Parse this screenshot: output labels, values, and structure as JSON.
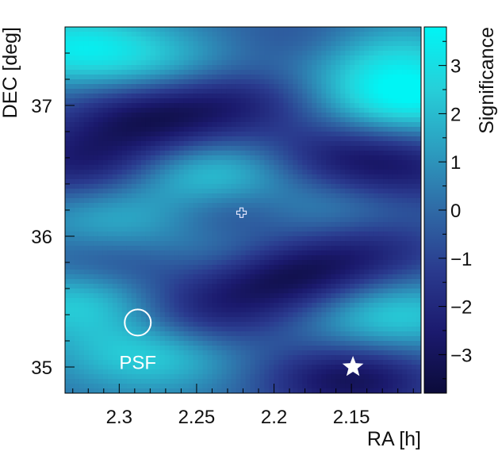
{
  "chart_data": {
    "type": "heatmap",
    "title": "",
    "xlabel": "RA [h]",
    "ylabel": "DEC [deg]",
    "colorbar_label": "Significance",
    "xlim": [
      2.335,
      2.105
    ],
    "ylim": [
      34.8,
      37.6
    ],
    "color_range": [
      -3.8,
      3.8
    ],
    "x_ticks": [
      2.3,
      2.25,
      2.2,
      2.15
    ],
    "x_tick_labels": [
      "2.3",
      "2.25",
      "2.2",
      "2.15"
    ],
    "y_ticks": [
      35,
      36,
      37
    ],
    "y_tick_labels": [
      "35",
      "36",
      "37"
    ],
    "colorbar_ticks": [
      3,
      2,
      1,
      0,
      -1,
      -2,
      -3
    ],
    "colorbar_tick_labels": [
      "3",
      "2",
      "1",
      "0",
      "−1",
      "−2",
      "−3"
    ],
    "colormap": [
      "#0b0b3a",
      "#1b1a6e",
      "#2a3a8e",
      "#2f6aa6",
      "#2c9ec0",
      "#26d0d9",
      "#00f5f5"
    ],
    "blobs": [
      {
        "ra": 2.33,
        "dec": 37.45,
        "sigma": 3.0
      },
      {
        "ra": 2.24,
        "dec": 36.45,
        "sigma": 3.2
      },
      {
        "ra": 2.13,
        "dec": 37.4,
        "sigma": 2.4
      },
      {
        "ra": 2.115,
        "dec": 37.05,
        "sigma": 3.5
      },
      {
        "ra": 2.18,
        "dec": 36.2,
        "sigma": 2.2
      },
      {
        "ra": 2.3,
        "dec": 36.1,
        "sigma": 2.0
      },
      {
        "ra": 2.32,
        "dec": 35.5,
        "sigma": 2.8
      },
      {
        "ra": 2.28,
        "dec": 35.1,
        "sigma": 2.6
      },
      {
        "ra": 2.225,
        "dec": 35.85,
        "sigma": 2.0
      },
      {
        "ra": 2.125,
        "dec": 35.4,
        "sigma": 2.6
      },
      {
        "ra": 2.2,
        "dec": 37.2,
        "sigma": 1.8
      },
      {
        "ra": 2.27,
        "dec": 37.3,
        "sigma": 1.6
      },
      {
        "ra": 2.195,
        "dec": 35.7,
        "sigma": -3.8
      },
      {
        "ra": 2.22,
        "dec": 36.2,
        "sigma": -3.0
      },
      {
        "ra": 2.215,
        "dec": 37.1,
        "sigma": -3.2
      },
      {
        "ra": 2.28,
        "dec": 36.9,
        "sigma": -3.0
      },
      {
        "ra": 2.15,
        "dec": 34.9,
        "sigma": -3.2
      },
      {
        "ra": 2.32,
        "dec": 36.55,
        "sigma": -2.6
      },
      {
        "ra": 2.16,
        "dec": 36.6,
        "sigma": -2.2
      },
      {
        "ra": 2.25,
        "dec": 35.4,
        "sigma": -2.4
      },
      {
        "ra": 2.14,
        "dec": 35.9,
        "sigma": -2.0
      },
      {
        "ra": 2.3,
        "dec": 35.8,
        "sigma": -1.8
      },
      {
        "ra": 2.175,
        "dec": 37.45,
        "sigma": -1.6
      },
      {
        "ra": 2.11,
        "dec": 36.5,
        "sigma": -1.8
      }
    ],
    "annotations": [
      {
        "type": "cross",
        "label": "",
        "ra": 2.221,
        "dec": 36.18
      },
      {
        "type": "star",
        "label": "",
        "ra": 2.149,
        "dec": 35.0
      },
      {
        "type": "psf-circle",
        "label": "PSF",
        "ra": 2.288,
        "dec": 35.34,
        "radius_deg": 0.1
      }
    ]
  }
}
